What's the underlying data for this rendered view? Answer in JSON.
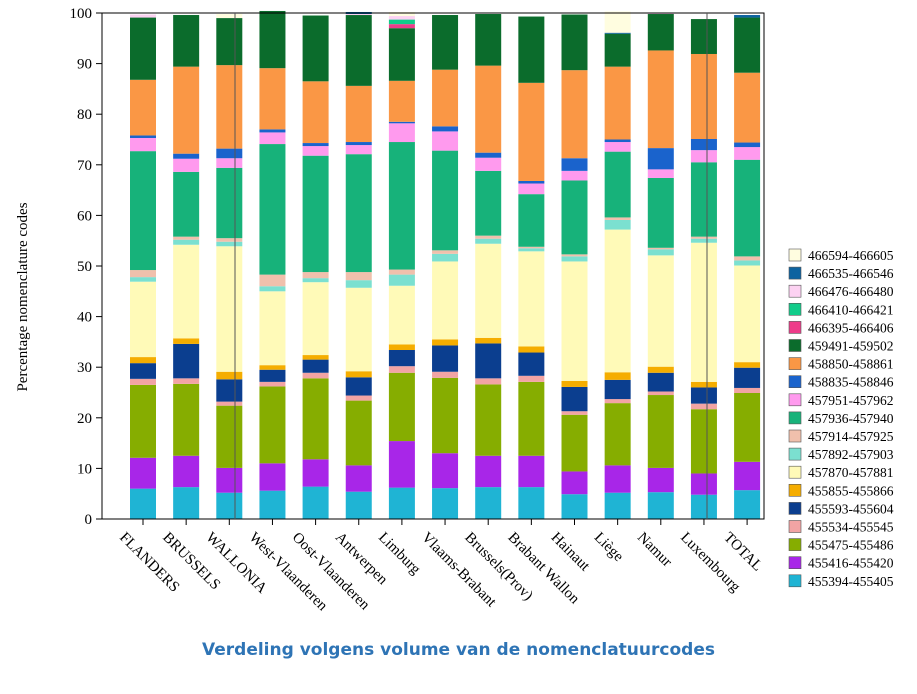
{
  "caption": "Verdeling volgens volume van de nomenclatuurcodes",
  "chart_data": {
    "type": "bar",
    "stacked": true,
    "title": "",
    "xlabel": "",
    "ylabel": "Percentage nomenclature codes",
    "ylim": [
      0,
      100
    ],
    "yticks": [
      "0",
      "10",
      "20",
      "30",
      "40",
      "50",
      "60",
      "70",
      "80",
      "90",
      "100"
    ],
    "grid": false,
    "legend_position": "right",
    "categories": [
      "FLANDERS",
      "BRUSSELS",
      "WALLONIA",
      "West-Vlaanderen",
      "Oost-Vlaanderen",
      "Antwerpen",
      "Limburg",
      "Vlaams-Brabant",
      "Brussels(Prov)",
      "Brabant Wallon",
      "Hainaut",
      "Liège",
      "Namur",
      "Luxembourg",
      "TOTAL"
    ],
    "series": [
      {
        "name": "455394-455405",
        "color": "#1fb4d4",
        "values": [
          6,
          6.3,
          5.2,
          5.6,
          6.4,
          5.4,
          6.2,
          6.1,
          6.3,
          6.3,
          4.9,
          5.2,
          5.3,
          4.8,
          5.7
        ]
      },
      {
        "name": "455416-455420",
        "color": "#a826e8",
        "values": [
          6.1,
          6.2,
          4.9,
          5.4,
          5.4,
          5.2,
          9.2,
          6.9,
          6.2,
          6.2,
          4.5,
          5.4,
          4.8,
          4.2,
          5.6
        ]
      },
      {
        "name": "455475-455486",
        "color": "#86ad00",
        "values": [
          14.4,
          14.2,
          12.3,
          15.2,
          16,
          12.8,
          13.5,
          14.9,
          14.1,
          14.6,
          11.2,
          12.3,
          14.4,
          12.7,
          13.6
        ]
      },
      {
        "name": "455534-455545",
        "color": "#f2a4a4",
        "values": [
          1.2,
          1.1,
          0.8,
          0.9,
          1.1,
          1,
          1.3,
          1.2,
          1.2,
          1.2,
          0.7,
          0.8,
          0.7,
          1.1,
          1
        ]
      },
      {
        "name": "455593-455604",
        "color": "#0b3e8f",
        "values": [
          3.1,
          6.8,
          4.4,
          2.4,
          2.6,
          3.6,
          3.2,
          5.2,
          6.9,
          4.6,
          4.8,
          3.8,
          3.7,
          3.2,
          4
        ]
      },
      {
        "name": "455855-455866",
        "color": "#f5ad00",
        "values": [
          1.2,
          1.1,
          1.5,
          0.9,
          0.9,
          1.2,
          1.1,
          1.2,
          1.1,
          1.2,
          1.2,
          1.5,
          1.2,
          1.1,
          1.1
        ]
      },
      {
        "name": "457870-457881",
        "color": "#fffab8",
        "values": [
          14.9,
          18.5,
          24.8,
          14.6,
          14.4,
          16.5,
          11.6,
          15.4,
          18.6,
          18.8,
          23.6,
          28.2,
          22,
          27.5,
          19.1
        ]
      },
      {
        "name": "457892-457903",
        "color": "#7be0d0",
        "values": [
          0.9,
          1,
          0.9,
          1,
          0.8,
          1.5,
          2.2,
          1.5,
          1,
          0.6,
          1,
          1.9,
          1.2,
          0.8,
          1
        ]
      },
      {
        "name": "457914-457925",
        "color": "#f0c0ac",
        "values": [
          1.4,
          0.6,
          0.7,
          2.3,
          1.2,
          1.6,
          1,
          0.7,
          0.6,
          0.3,
          0.4,
          0.5,
          0.3,
          0.4,
          0.8
        ]
      },
      {
        "name": "457936-457940",
        "color": "#17b27a",
        "values": [
          23.5,
          12.8,
          13.9,
          25.8,
          23,
          23.3,
          25.2,
          19.7,
          12.8,
          10.4,
          14.6,
          13,
          13.8,
          14.7,
          19.1
        ]
      },
      {
        "name": "457951-457962",
        "color": "#ff9aee",
        "values": [
          2.6,
          2.6,
          1.9,
          2.3,
          1.9,
          1.8,
          3.7,
          3.8,
          2.6,
          2.1,
          1.9,
          1.9,
          1.7,
          2.4,
          2.5
        ]
      },
      {
        "name": "458835-458846",
        "color": "#1a63cc",
        "values": [
          0.5,
          1,
          1.9,
          0.6,
          0.6,
          0.6,
          0.3,
          1,
          1,
          0.5,
          2.5,
          0.5,
          4.2,
          2.2,
          0.9
        ]
      },
      {
        "name": "458850-458861",
        "color": "#fa9745",
        "values": [
          11,
          17.2,
          16.5,
          12.1,
          12.2,
          11.1,
          8.1,
          11.2,
          17.2,
          19.4,
          17.4,
          14.4,
          19.3,
          16.8,
          13.8
        ]
      },
      {
        "name": "459491-459502",
        "color": "#0b6c2c",
        "values": [
          12.3,
          10.2,
          9.3,
          11.3,
          13,
          14,
          10.4,
          10.8,
          10.2,
          13.1,
          11,
          6.5,
          7.2,
          6.9,
          10.9
        ]
      },
      {
        "name": "466395-466406",
        "color": "#ee3c8a",
        "values": [
          0,
          0,
          0,
          0,
          0,
          0,
          0.8,
          0,
          0,
          0,
          0,
          0,
          0,
          0,
          0
        ]
      },
      {
        "name": "466410-466421",
        "color": "#12cc8a",
        "values": [
          0,
          0,
          0,
          0,
          0,
          0,
          0.9,
          0,
          0,
          0,
          0,
          0,
          0,
          0,
          0
        ]
      },
      {
        "name": "466476-466480",
        "color": "#fcd2f2",
        "values": [
          0.6,
          0,
          0,
          0,
          0,
          0.2,
          0.7,
          0,
          0,
          0,
          0,
          0,
          0.3,
          0,
          0
        ]
      },
      {
        "name": "466535-466546",
        "color": "#0d63a0",
        "values": [
          0,
          0,
          0,
          0,
          0,
          0.4,
          0,
          0,
          0,
          0,
          0,
          0.2,
          0,
          0,
          0.5
        ]
      },
      {
        "name": "466594-466605",
        "color": "#fffde0",
        "values": [
          0,
          0,
          0.8,
          0,
          0,
          0,
          0.8,
          0,
          0,
          0,
          0,
          4.2,
          0,
          0,
          0
        ]
      }
    ]
  }
}
